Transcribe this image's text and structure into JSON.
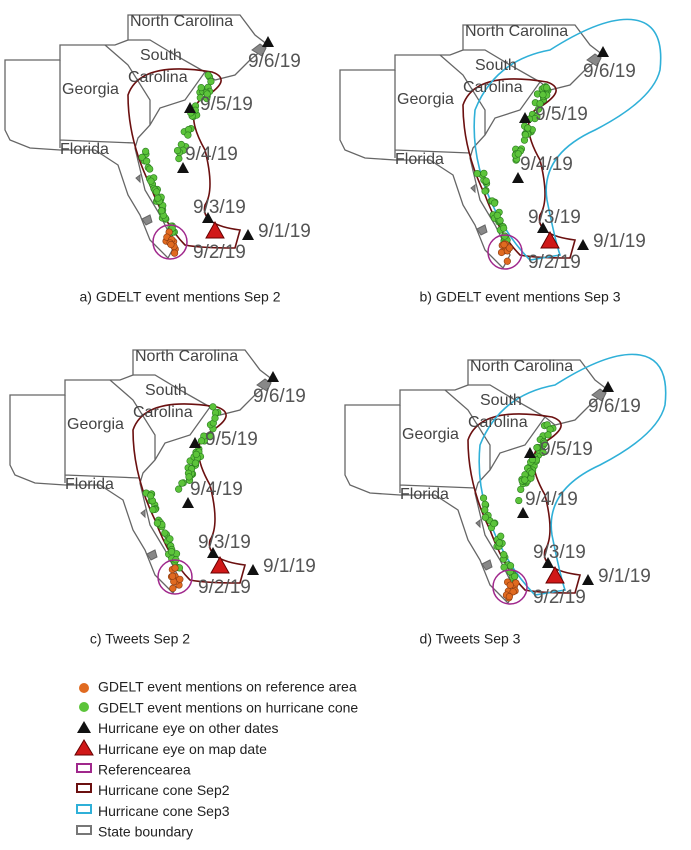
{
  "panels": [
    {
      "caption": "a) GDELT event mentions Sep 2",
      "states": [
        "North Carolina",
        "South",
        "Carolina",
        "Georgia",
        "Florida"
      ],
      "dates": [
        "9/6/19",
        "9/5/19",
        "9/4/19",
        "9/3/19",
        "9/2/19",
        "9/1/19"
      ]
    },
    {
      "caption": "b) GDELT event mentions Sep 3",
      "states": [
        "North Carolina",
        "South",
        "Carolina",
        "Georgia",
        "Florida"
      ],
      "dates": [
        "9/6/19",
        "9/5/19",
        "9/4/19",
        "9/3/19",
        "9/2/19",
        "9/1/19"
      ]
    },
    {
      "caption": "c) Tweets Sep 2",
      "states": [
        "North Carolina",
        "South",
        "Carolina",
        "Georgia",
        "Florida"
      ],
      "dates": [
        "9/6/19",
        "9/5/19",
        "9/4/19",
        "9/3/19",
        "9/2/19",
        "9/1/19"
      ]
    },
    {
      "caption": "d) Tweets Sep 3",
      "states": [
        "North Carolina",
        "South",
        "Carolina",
        "Georgia",
        "Florida"
      ],
      "dates": [
        "9/6/19",
        "9/5/19",
        "9/4/19",
        "9/3/19",
        "9/2/19",
        "9/1/19"
      ]
    }
  ],
  "legend": [
    "GDELT event mentions on reference area",
    "GDELT event mentions on hurricane cone",
    "Hurricane eye on other dates",
    "Hurricane eye on map date",
    "Referencearea",
    "Hurricane cone Sep2",
    "Hurricane cone Sep3",
    "State boundary"
  ]
}
